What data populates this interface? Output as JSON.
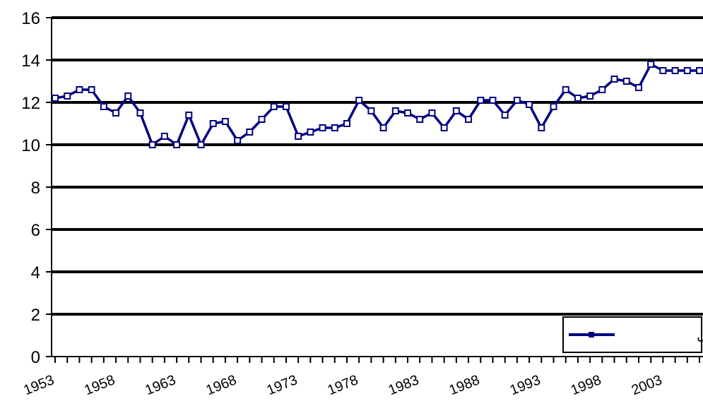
{
  "chart_data": {
    "type": "line",
    "title": "",
    "xlabel": "",
    "ylabel": "",
    "ylim": [
      0,
      16
    ],
    "yticks": [
      0,
      2,
      4,
      6,
      8,
      10,
      12,
      14,
      16
    ],
    "xlim": [
      1953,
      2006
    ],
    "xtick_labels": [
      "1953",
      "1958",
      "1963",
      "1968",
      "1973",
      "1978",
      "1983",
      "1988",
      "1993",
      "1998",
      "2003"
    ],
    "grid": "horizontal",
    "legend_position": "bottom-right",
    "series": [
      {
        "name": "دمای حداقل",
        "color": "#000080",
        "x": [
          1953,
          1954,
          1955,
          1956,
          1957,
          1958,
          1959,
          1960,
          1961,
          1962,
          1963,
          1964,
          1965,
          1966,
          1967,
          1968,
          1969,
          1970,
          1971,
          1972,
          1973,
          1974,
          1975,
          1976,
          1977,
          1978,
          1979,
          1980,
          1981,
          1982,
          1983,
          1984,
          1985,
          1986,
          1987,
          1988,
          1989,
          1990,
          1991,
          1992,
          1993,
          1994,
          1995,
          1996,
          1997,
          1998,
          1999,
          2000,
          2001,
          2002,
          2003,
          2004,
          2005,
          2006
        ],
        "values": [
          12.2,
          12.3,
          12.6,
          12.6,
          11.8,
          11.5,
          12.3,
          11.5,
          10.0,
          10.4,
          10.0,
          11.4,
          10.0,
          11.0,
          11.1,
          10.2,
          10.6,
          11.2,
          11.8,
          11.8,
          10.4,
          10.6,
          10.8,
          10.8,
          11.0,
          12.1,
          11.6,
          10.8,
          11.6,
          11.5,
          11.2,
          11.5,
          10.8,
          11.6,
          11.2,
          12.1,
          12.1,
          11.4,
          12.1,
          11.9,
          10.8,
          11.8,
          12.6,
          12.2,
          12.3,
          12.6,
          13.1,
          13.0,
          12.7,
          13.8,
          13.5,
          13.5,
          13.5,
          13.5
        ]
      }
    ]
  }
}
